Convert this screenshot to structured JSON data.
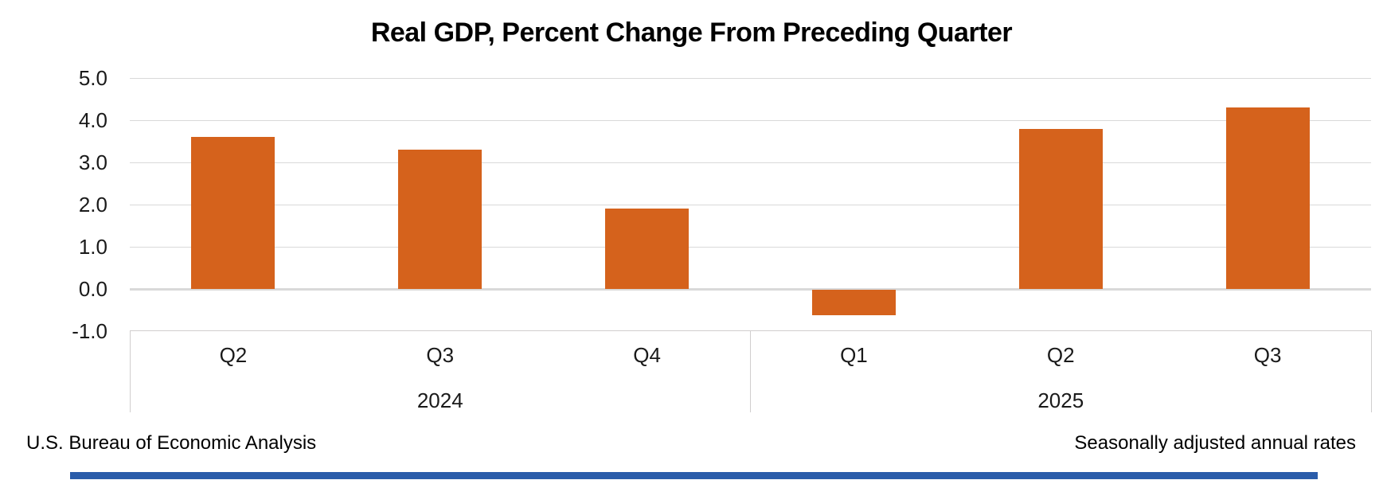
{
  "chart_data": {
    "type": "bar",
    "title": "Real GDP, Percent Change From Preceding Quarter",
    "categories": [
      "Q2",
      "Q3",
      "Q4",
      "Q1",
      "Q2",
      "Q3"
    ],
    "values": [
      3.6,
      3.3,
      1.9,
      -0.6,
      3.8,
      4.3
    ],
    "group_labels": [
      {
        "label": "2024",
        "start": 0,
        "end": 3
      },
      {
        "label": "2025",
        "start": 3,
        "end": 6
      }
    ],
    "ylim": [
      -1.0,
      5.0
    ],
    "yticks": [
      5.0,
      4.0,
      3.0,
      2.0,
      1.0,
      0.0,
      -1.0
    ],
    "ytick_labels": [
      "5.0",
      "4.0",
      "3.0",
      "2.0",
      "1.0",
      "0.0",
      "-1.0"
    ],
    "grid": true,
    "legend_position": "none",
    "bar_color": "#d5621c",
    "gridline_color": "#d9d9d9",
    "axis_line_color": "#d0cece",
    "accent_bar_color": "#2a5caa"
  },
  "footer": {
    "left": "U.S. Bureau of Economic Analysis",
    "right": "Seasonally adjusted annual rates"
  }
}
